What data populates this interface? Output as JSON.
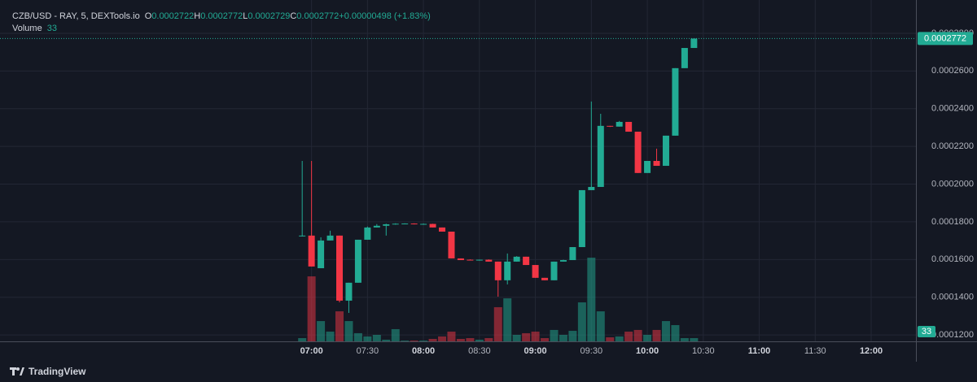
{
  "chart_data": {
    "type": "candlestick",
    "title": "CZB/USD - RAY, 5, DEXTools.io",
    "ohlc_labels": [
      "O",
      "H",
      "L",
      "C"
    ],
    "change_label": "+0.00000498 (+1.83%)",
    "volume_label": "Volume",
    "brand": "TradingView",
    "up_color": "#22ab94",
    "down_color": "#f23645",
    "x": [
      "06:55",
      "07:00",
      "07:05",
      "07:10",
      "07:15",
      "07:20",
      "07:25",
      "07:30",
      "07:35",
      "07:40",
      "07:45",
      "07:50",
      "07:55",
      "08:00",
      "08:05",
      "08:10",
      "08:15",
      "08:20",
      "08:25",
      "08:30",
      "08:35",
      "08:40",
      "08:45",
      "08:50",
      "08:55",
      "09:00",
      "09:05",
      "09:10",
      "09:15",
      "09:20",
      "09:25",
      "09:30",
      "09:35",
      "09:40",
      "09:45",
      "09:50",
      "09:55",
      "10:00",
      "10:05",
      "10:10",
      "10:15",
      "10:20",
      "10:25"
    ],
    "open": [
      0.0001724,
      0.0001727,
      0.0001554,
      0.0001701,
      0.0001727,
      0.0001382,
      0.0001477,
      0.0001705,
      0.000177,
      0.0001779,
      0.0001787,
      0.000179,
      0.0001791,
      0.0001787,
      0.0001789,
      0.000177,
      0.0001748,
      0.0001606,
      0.0001599,
      0.0001596,
      0.0001599,
      0.0001589,
      0.000149,
      0.0001589,
      0.0001615,
      0.0001571,
      0.0001503,
      0.000149,
      0.0001589,
      0.0001597,
      0.0001666,
      0.0001968,
      0.0001985,
      0.0002309,
      0.0002305,
      0.000233,
      0.0002278,
      0.0002059,
      0.0002123,
      0.0002097,
      0.0002257,
      0.0002615,
      0.0002722
    ],
    "high": [
      0.0002123,
      0.0002123,
      0.0001718,
      0.0001753,
      0.0001727,
      0.0001477,
      0.0001705,
      0.0001775,
      0.0001788,
      0.000179,
      0.0001792,
      0.0001792,
      0.0001792,
      0.0001791,
      0.000179,
      0.000177,
      0.0001748,
      0.0001606,
      0.0001601,
      0.00016,
      0.0001601,
      0.0001589,
      0.0001632,
      0.0001618,
      0.0001615,
      0.0001571,
      0.0001503,
      0.0001589,
      0.0001599,
      0.0001666,
      0.0001968,
      0.0002438,
      0.0002373,
      0.0002309,
      0.0002335,
      0.000233,
      0.0002278,
      0.0002123,
      0.0002188,
      0.0002257,
      0.0002615,
      0.0002722,
      0.0002772
    ],
    "low": [
      0.0001722,
      0.0001563,
      0.0001554,
      0.0001701,
      0.0001373,
      0.0001317,
      0.0001477,
      0.0001705,
      0.000177,
      0.0001727,
      0.0001785,
      0.0001787,
      0.0001786,
      0.0001785,
      0.000177,
      0.0001748,
      0.0001606,
      0.0001597,
      0.0001595,
      0.0001594,
      0.0001589,
      0.0001403,
      0.0001468,
      0.0001589,
      0.0001571,
      0.0001503,
      0.000149,
      0.000149,
      0.0001589,
      0.0001597,
      0.0001666,
      0.0001968,
      0.0001985,
      0.0002303,
      0.0002305,
      0.0002278,
      0.0002059,
      0.0002059,
      0.0002097,
      0.0002097,
      0.0002257,
      0.0002615,
      0.0002729
    ],
    "close": [
      0.0001727,
      0.0001563,
      0.0001701,
      0.0001727,
      0.0001382,
      0.0001477,
      0.0001705,
      0.000177,
      0.0001779,
      0.0001787,
      0.000179,
      0.0001791,
      0.0001787,
      0.0001789,
      0.000177,
      0.0001748,
      0.0001606,
      0.0001597,
      0.0001596,
      0.0001599,
      0.0001589,
      0.000149,
      0.0001589,
      0.0001615,
      0.0001571,
      0.0001503,
      0.000149,
      0.0001589,
      0.0001597,
      0.0001666,
      0.0001968,
      0.0001985,
      0.0002309,
      0.0002305,
      0.000233,
      0.0002278,
      0.0002059,
      0.0002123,
      0.0002097,
      0.0002257,
      0.0002615,
      0.0002722,
      0.0002772
    ],
    "volume": [
      33,
      660,
      206,
      99,
      305,
      206,
      83,
      50,
      66,
      17,
      124,
      8,
      8,
      8,
      25,
      50,
      99,
      25,
      33,
      17,
      33,
      347,
      437,
      66,
      83,
      99,
      33,
      116,
      66,
      107,
      396,
      850,
      305,
      41,
      50,
      99,
      116,
      66,
      116,
      206,
      165,
      33,
      33
    ],
    "volume_lim": [
      0,
      3400
    ],
    "ylim": [
      0.0001166,
      0.0002942
    ],
    "yticks": [
      {
        "value": 0.00012,
        "label": "0.0001200"
      },
      {
        "value": 0.00014,
        "label": "0.0001400"
      },
      {
        "value": 0.00016,
        "label": "0.0001600"
      },
      {
        "value": 0.00018,
        "label": "0.0001800"
      },
      {
        "value": 0.0002,
        "label": "0.0002000"
      },
      {
        "value": 0.00022,
        "label": "0.0002200"
      },
      {
        "value": 0.00024,
        "label": "0.0002400"
      },
      {
        "value": 0.00026,
        "label": "0.0002600"
      },
      {
        "value": 0.00028,
        "label": "0.0002800"
      }
    ],
    "xlim": [
      "04:13",
      "12:24"
    ],
    "xticks": [
      "07:00",
      "07:30",
      "08:00",
      "08:30",
      "09:00",
      "09:30",
      "10:00",
      "10:30",
      "11:00",
      "11:30",
      "12:00"
    ],
    "grid": true
  }
}
